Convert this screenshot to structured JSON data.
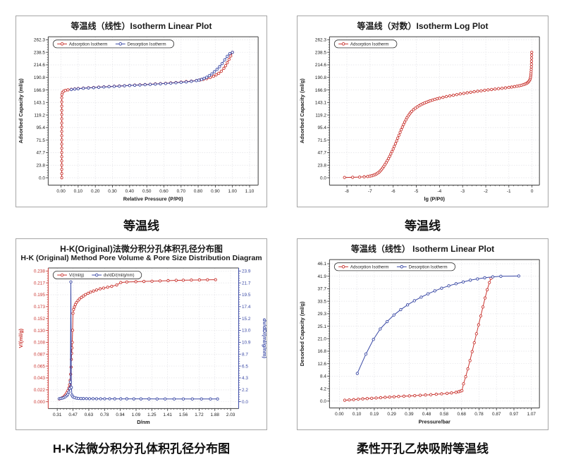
{
  "captions": {
    "top_left": "等温线",
    "top_right": "等温线",
    "bottom_left": "H-K法微分积分孔体积孔径分布图",
    "bottom_right": "柔性开孔乙炔吸附等温线"
  },
  "colors": {
    "adsorption": "#c9342f",
    "desorption": "#3a49a5",
    "frame": "#3c3c3c",
    "grid": "#e4e4e8",
    "tick": "#1a1a1a"
  },
  "chart_data": [
    {
      "type": "line",
      "title": "等温线（线性）Isotherm Linear Plot",
      "xlabel": "Relative Pressure (P/P0)",
      "ylabel": "Adsorbed Capacity (ml/g)",
      "xlim": [
        -0.075,
        1.15
      ],
      "ylim": [
        -14,
        268
      ],
      "xticks": {
        "min": 0,
        "max": 1.1,
        "labels": [
          "0.00",
          "0.10",
          "0.20",
          "0.30",
          "0.40",
          "0.50",
          "0.60",
          "0.70",
          "0.80",
          "0.90",
          "1.00",
          "1.10"
        ]
      },
      "yticks": {
        "min": 0,
        "max": 262.3,
        "labels": [
          "0.0",
          "23.8",
          "47.7",
          "71.5",
          "95.4",
          "119.2",
          "143.1",
          "166.9",
          "190.8",
          "214.6",
          "238.5",
          "262.3"
        ]
      },
      "legend": [
        {
          "label": "Adsorption Isotherm",
          "color": "#c9342f"
        },
        {
          "label": "Desorption Isotherm",
          "color": "#3a49a5"
        }
      ],
      "series": [
        {
          "name": "Adsorption Isotherm",
          "color": "#c9342f",
          "axis": "y",
          "x": [
            0.004,
            0.004,
            0.004,
            0.004,
            0.004,
            0.004,
            0.004,
            0.004,
            0.004,
            0.004,
            0.004,
            0.004,
            0.004,
            0.004,
            0.004,
            0.004,
            0.004,
            0.004,
            0.004,
            0.004,
            0.005,
            0.008,
            0.015,
            0.025,
            0.04,
            0.06,
            0.08,
            0.1,
            0.13,
            0.16,
            0.19,
            0.22,
            0.25,
            0.28,
            0.31,
            0.34,
            0.37,
            0.4,
            0.43,
            0.46,
            0.49,
            0.52,
            0.55,
            0.58,
            0.61,
            0.64,
            0.67,
            0.7,
            0.73,
            0.76,
            0.79,
            0.81,
            0.83,
            0.85,
            0.87,
            0.89,
            0.905,
            0.92,
            0.935,
            0.95,
            0.96,
            0.97,
            0.98,
            0.99,
            1.0
          ],
          "y": [
            0,
            8,
            16,
            24,
            32,
            40,
            48,
            56,
            64,
            72,
            80,
            88,
            96,
            104,
            112,
            120,
            128,
            136,
            144,
            152,
            158,
            162,
            164.5,
            166,
            167,
            168,
            168.8,
            169.5,
            170.3,
            171,
            171.6,
            172.2,
            172.8,
            173.3,
            173.9,
            174.4,
            175,
            175.5,
            176,
            176.6,
            177.1,
            177.7,
            178.3,
            178.9,
            179.5,
            180.2,
            181,
            181.8,
            182.7,
            183.7,
            184.8,
            185.8,
            187,
            188.5,
            190.5,
            193,
            195.5,
            198.5,
            202.5,
            208,
            213,
            218.5,
            225,
            231.5,
            238.5
          ]
        },
        {
          "name": "Desorption Isotherm",
          "color": "#3a49a5",
          "axis": "y",
          "x": [
            1.0,
            0.985,
            0.97,
            0.955,
            0.94,
            0.925,
            0.91,
            0.895,
            0.88,
            0.865,
            0.85,
            0.835,
            0.82,
            0.805,
            0.79,
            0.76,
            0.73,
            0.7,
            0.67,
            0.64,
            0.61,
            0.58,
            0.55,
            0.52,
            0.49,
            0.46,
            0.43,
            0.4,
            0.37,
            0.34,
            0.31,
            0.28,
            0.25,
            0.22,
            0.19,
            0.16,
            0.13,
            0.1,
            0.08,
            0.06
          ],
          "y": [
            238.5,
            236,
            231,
            224,
            217,
            211,
            206,
            201.5,
            197.5,
            194,
            191,
            188.8,
            187,
            185.6,
            184.6,
            183.2,
            182.2,
            181.4,
            180.6,
            179.9,
            179.2,
            178.6,
            178,
            177.4,
            176.9,
            176.3,
            175.8,
            175.3,
            174.8,
            174.2,
            173.7,
            173.1,
            172.5,
            171.9,
            171.3,
            170.7,
            170,
            169.2,
            168.6,
            167.8
          ]
        }
      ]
    },
    {
      "type": "line",
      "title": "等温线（对数）Isotherm Log Plot",
      "xlabel": "lg (P/P0)",
      "ylabel": "Adsorbed Capacity (ml/g)",
      "xlim": [
        -8.75,
        0.32
      ],
      "ylim": [
        -14,
        268
      ],
      "xticks": {
        "min": -8,
        "max": 0,
        "labels": [
          "-8",
          "-7",
          "-6",
          "-5",
          "-4",
          "-3",
          "-2",
          "-1",
          "0"
        ]
      },
      "yticks": {
        "min": 0,
        "max": 262.3,
        "labels": [
          "0.0",
          "23.8",
          "47.7",
          "71.5",
          "95.4",
          "119.2",
          "143.1",
          "166.9",
          "190.8",
          "214.6",
          "238.5",
          "262.3"
        ]
      },
      "legend": [
        {
          "label": "Adsorption Isotherm",
          "color": "#c9342f"
        }
      ],
      "series": [
        {
          "name": "Adsorption Isotherm",
          "color": "#c9342f",
          "axis": "y",
          "x": [
            -8.1,
            -7.75,
            -7.45,
            -7.25,
            -7.1,
            -7.0,
            -6.92,
            -6.85,
            -6.78,
            -6.72,
            -6.66,
            -6.6,
            -6.55,
            -6.5,
            -6.45,
            -6.4,
            -6.35,
            -6.3,
            -6.25,
            -6.2,
            -6.15,
            -6.1,
            -6.05,
            -6.0,
            -5.95,
            -5.9,
            -5.85,
            -5.8,
            -5.75,
            -5.7,
            -5.65,
            -5.6,
            -5.55,
            -5.5,
            -5.45,
            -5.4,
            -5.35,
            -5.3,
            -5.25,
            -5.2,
            -5.12,
            -5.04,
            -4.96,
            -4.88,
            -4.8,
            -4.72,
            -4.64,
            -4.56,
            -4.48,
            -4.4,
            -4.3,
            -4.2,
            -4.1,
            -4.0,
            -3.85,
            -3.7,
            -3.55,
            -3.4,
            -3.25,
            -3.1,
            -2.95,
            -2.8,
            -2.65,
            -2.5,
            -2.35,
            -2.2,
            -2.05,
            -1.9,
            -1.75,
            -1.6,
            -1.45,
            -1.3,
            -1.15,
            -1.0,
            -0.88,
            -0.76,
            -0.65,
            -0.55,
            -0.46,
            -0.38,
            -0.31,
            -0.25,
            -0.2,
            -0.16,
            -0.13,
            -0.1,
            -0.08,
            -0.065,
            -0.055,
            -0.047,
            -0.04,
            -0.034,
            -0.029,
            -0.025,
            -0.021,
            -0.018,
            -0.015,
            -0.012
          ],
          "y": [
            0.6,
            0.9,
            1.3,
            1.8,
            2.4,
            3.1,
            3.9,
            4.8,
            6,
            7.4,
            9,
            11,
            13.2,
            15.8,
            18.6,
            21.8,
            25.2,
            28.8,
            32.6,
            36.6,
            40.8,
            45.2,
            49.8,
            54.6,
            59.6,
            64.8,
            70,
            75.4,
            80.8,
            86.2,
            91.4,
            96.4,
            101.2,
            105.8,
            110,
            114,
            117.6,
            120.8,
            123.6,
            126.2,
            129.4,
            132.2,
            134.6,
            136.8,
            138.8,
            140.6,
            142.2,
            143.6,
            145,
            146.2,
            147.6,
            148.9,
            150.1,
            151.2,
            152.8,
            154.2,
            155.6,
            156.9,
            158.1,
            159.3,
            160.4,
            161.5,
            162.5,
            163.5,
            164.4,
            165.3,
            166.2,
            167,
            167.8,
            168.6,
            169.4,
            170.1,
            170.9,
            171.7,
            172.4,
            173.2,
            174,
            174.9,
            175.8,
            176.8,
            177.9,
            179.1,
            180.4,
            181.9,
            183.6,
            185.6,
            188,
            190.8,
            194,
            197.6,
            201.6,
            206,
            210.8,
            216,
            221.6,
            227.4,
            233,
            238.5
          ]
        }
      ]
    },
    {
      "type": "line",
      "title": "H-K(Original)法微分积分孔体积孔径分布图",
      "subtitle": "H-K (Original) Method Pore Volume & Pore Size Distribution Diagram",
      "xlabel": "D/nm",
      "ylabel": "V/(ml/g)",
      "y2label": "dv/dD/(ml/g/nm)",
      "xlim": [
        0.22,
        2.11
      ],
      "ylim": [
        -0.0125,
        0.2435
      ],
      "y2lim": [
        -1.26,
        24.45
      ],
      "axis_colors": {
        "left": "#c9342f",
        "right": "#3a49a5"
      },
      "xticks": {
        "min": 0.31,
        "max": 2.03,
        "labels": [
          "0.31",
          "0.47",
          "0.63",
          "0.78",
          "0.94",
          "1.09",
          "1.25",
          "1.41",
          "1.56",
          "1.72",
          "1.88",
          "2.03"
        ]
      },
      "yticks": {
        "min": 0,
        "max": 0.238,
        "labels": [
          "0.000",
          "0.022",
          "0.043",
          "0.065",
          "0.087",
          "0.108",
          "0.130",
          "0.152",
          "0.173",
          "0.195",
          "0.217",
          "0.238"
        ]
      },
      "y2ticks": {
        "min": 0,
        "max": 23.9,
        "labels": [
          "0.0",
          "2.2",
          "4.3",
          "6.5",
          "8.7",
          "10.9",
          "13.0",
          "15.2",
          "17.4",
          "19.5",
          "21.7",
          "23.9"
        ]
      },
      "legend": [
        {
          "label": "V/(ml/g)",
          "color": "#c9342f"
        },
        {
          "label": "dv/dD/(ml/g/nm)",
          "color": "#3a49a5"
        }
      ],
      "series": [
        {
          "name": "V/(ml/g)",
          "color": "#c9342f",
          "axis": "y",
          "x": [
            0.33,
            0.345,
            0.36,
            0.375,
            0.385,
            0.395,
            0.405,
            0.415,
            0.425,
            0.432,
            0.438,
            0.443,
            0.447,
            0.45,
            0.453,
            0.456,
            0.459,
            0.462,
            0.466,
            0.472,
            0.48,
            0.49,
            0.5,
            0.515,
            0.53,
            0.55,
            0.57,
            0.59,
            0.615,
            0.64,
            0.67,
            0.7,
            0.735,
            0.77,
            0.81,
            0.85,
            0.9,
            0.94,
            1.0,
            1.09,
            1.17,
            1.25,
            1.33,
            1.41,
            1.49,
            1.56,
            1.64,
            1.72,
            1.8,
            1.88
          ],
          "y": [
            0.005,
            0.006,
            0.0075,
            0.009,
            0.011,
            0.0135,
            0.0165,
            0.02,
            0.025,
            0.031,
            0.039,
            0.05,
            0.063,
            0.077,
            0.088,
            0.098,
            0.108,
            0.13,
            0.161,
            0.168,
            0.1725,
            0.177,
            0.1805,
            0.184,
            0.187,
            0.19,
            0.1925,
            0.195,
            0.1975,
            0.1995,
            0.2015,
            0.2035,
            0.2055,
            0.207,
            0.2085,
            0.21,
            0.2125,
            0.217,
            0.218,
            0.2185,
            0.219,
            0.2195,
            0.22,
            0.2205,
            0.221,
            0.2212,
            0.2215,
            0.2218,
            0.222,
            0.2222
          ]
        },
        {
          "name": "dv/dD/(ml/g/nm)",
          "color": "#3a49a5",
          "axis": "y2",
          "x": [
            0.33,
            0.345,
            0.36,
            0.375,
            0.39,
            0.405,
            0.415,
            0.425,
            0.433,
            0.44,
            0.445,
            0.45,
            0.456,
            0.465,
            0.48,
            0.5,
            0.52,
            0.545,
            0.57,
            0.6,
            0.63,
            0.665,
            0.7,
            0.74,
            0.78,
            0.83,
            0.88,
            0.94,
            1.0,
            1.07,
            1.14,
            1.22,
            1.3,
            1.38,
            1.47,
            1.56,
            1.65,
            1.74,
            1.83,
            1.9
          ],
          "y": [
            0.55,
            0.6,
            0.65,
            0.75,
            0.9,
            1.1,
            1.35,
            1.75,
            2.4,
            3.6,
            21.9,
            2.6,
            1.2,
            0.9,
            0.75,
            0.65,
            0.6,
            0.58,
            0.57,
            0.56,
            0.55,
            0.55,
            0.54,
            0.54,
            0.53,
            0.53,
            0.52,
            0.52,
            0.52,
            0.51,
            0.51,
            0.51,
            0.5,
            0.5,
            0.5,
            0.5,
            0.5,
            0.5,
            0.5,
            0.5
          ]
        }
      ]
    },
    {
      "type": "line",
      "title": "等温线（线性） Isotherm Linear Plot",
      "xlabel": "Pressure/bar",
      "ylabel": "Desorbed Capacity (ml/g)",
      "xlim": [
        -0.055,
        1.115
      ],
      "ylim": [
        -2.3,
        47.5
      ],
      "xticks": {
        "min": 0,
        "max": 1.07,
        "labels": [
          "0.00",
          "0.10",
          "0.19",
          "0.29",
          "0.39",
          "0.48",
          "0.58",
          "0.68",
          "0.78",
          "0.87",
          "0.97",
          "1.07"
        ]
      },
      "yticks": {
        "min": 0,
        "max": 46.1,
        "labels": [
          "0.0",
          "4.2",
          "8.4",
          "12.6",
          "16.8",
          "21.0",
          "25.1",
          "29.3",
          "33.5",
          "37.7",
          "41.9",
          "46.1"
        ]
      },
      "legend": [
        {
          "label": "Adsorption Isotherm",
          "color": "#c9342f"
        },
        {
          "label": "Desorption Isotherm",
          "color": "#3a49a5"
        }
      ],
      "series": [
        {
          "name": "Adsorption Isotherm",
          "color": "#c9342f",
          "axis": "y",
          "x": [
            0.03,
            0.055,
            0.08,
            0.105,
            0.13,
            0.155,
            0.18,
            0.205,
            0.23,
            0.255,
            0.28,
            0.305,
            0.33,
            0.36,
            0.39,
            0.42,
            0.45,
            0.48,
            0.51,
            0.54,
            0.57,
            0.6,
            0.625,
            0.65,
            0.665,
            0.675,
            0.683,
            0.692,
            0.704,
            0.716,
            0.728,
            0.74,
            0.752,
            0.764,
            0.776,
            0.788,
            0.8,
            0.812,
            0.824,
            0.836,
            0.845
          ],
          "y": [
            0.3,
            0.4,
            0.5,
            0.65,
            0.75,
            0.85,
            0.95,
            1.05,
            1.15,
            1.25,
            1.35,
            1.45,
            1.55,
            1.65,
            1.75,
            1.85,
            1.95,
            2.05,
            2.15,
            2.3,
            2.45,
            2.6,
            2.75,
            2.95,
            3.15,
            3.35,
            3.5,
            5.8,
            8.2,
            10.8,
            13.6,
            16.6,
            19.6,
            22.6,
            25.6,
            28.6,
            31.6,
            34.6,
            37.4,
            39.8,
            41.2
          ]
        },
        {
          "name": "Desorption Isotherm",
          "color": "#3a49a5",
          "axis": "y",
          "x": [
            0.1,
            0.148,
            0.19,
            0.228,
            0.266,
            0.304,
            0.342,
            0.38,
            0.418,
            0.456,
            0.494,
            0.532,
            0.57,
            0.61,
            0.65,
            0.69,
            0.73,
            0.77,
            0.81,
            0.855,
            0.9,
            1.0
          ],
          "y": [
            9.3,
            15.8,
            20.7,
            24.2,
            26.7,
            28.9,
            30.7,
            32.3,
            33.7,
            34.9,
            36.0,
            37.0,
            37.9,
            38.7,
            39.4,
            40.0,
            40.6,
            41.0,
            41.4,
            41.7,
            41.9,
            42.0
          ]
        }
      ]
    }
  ]
}
